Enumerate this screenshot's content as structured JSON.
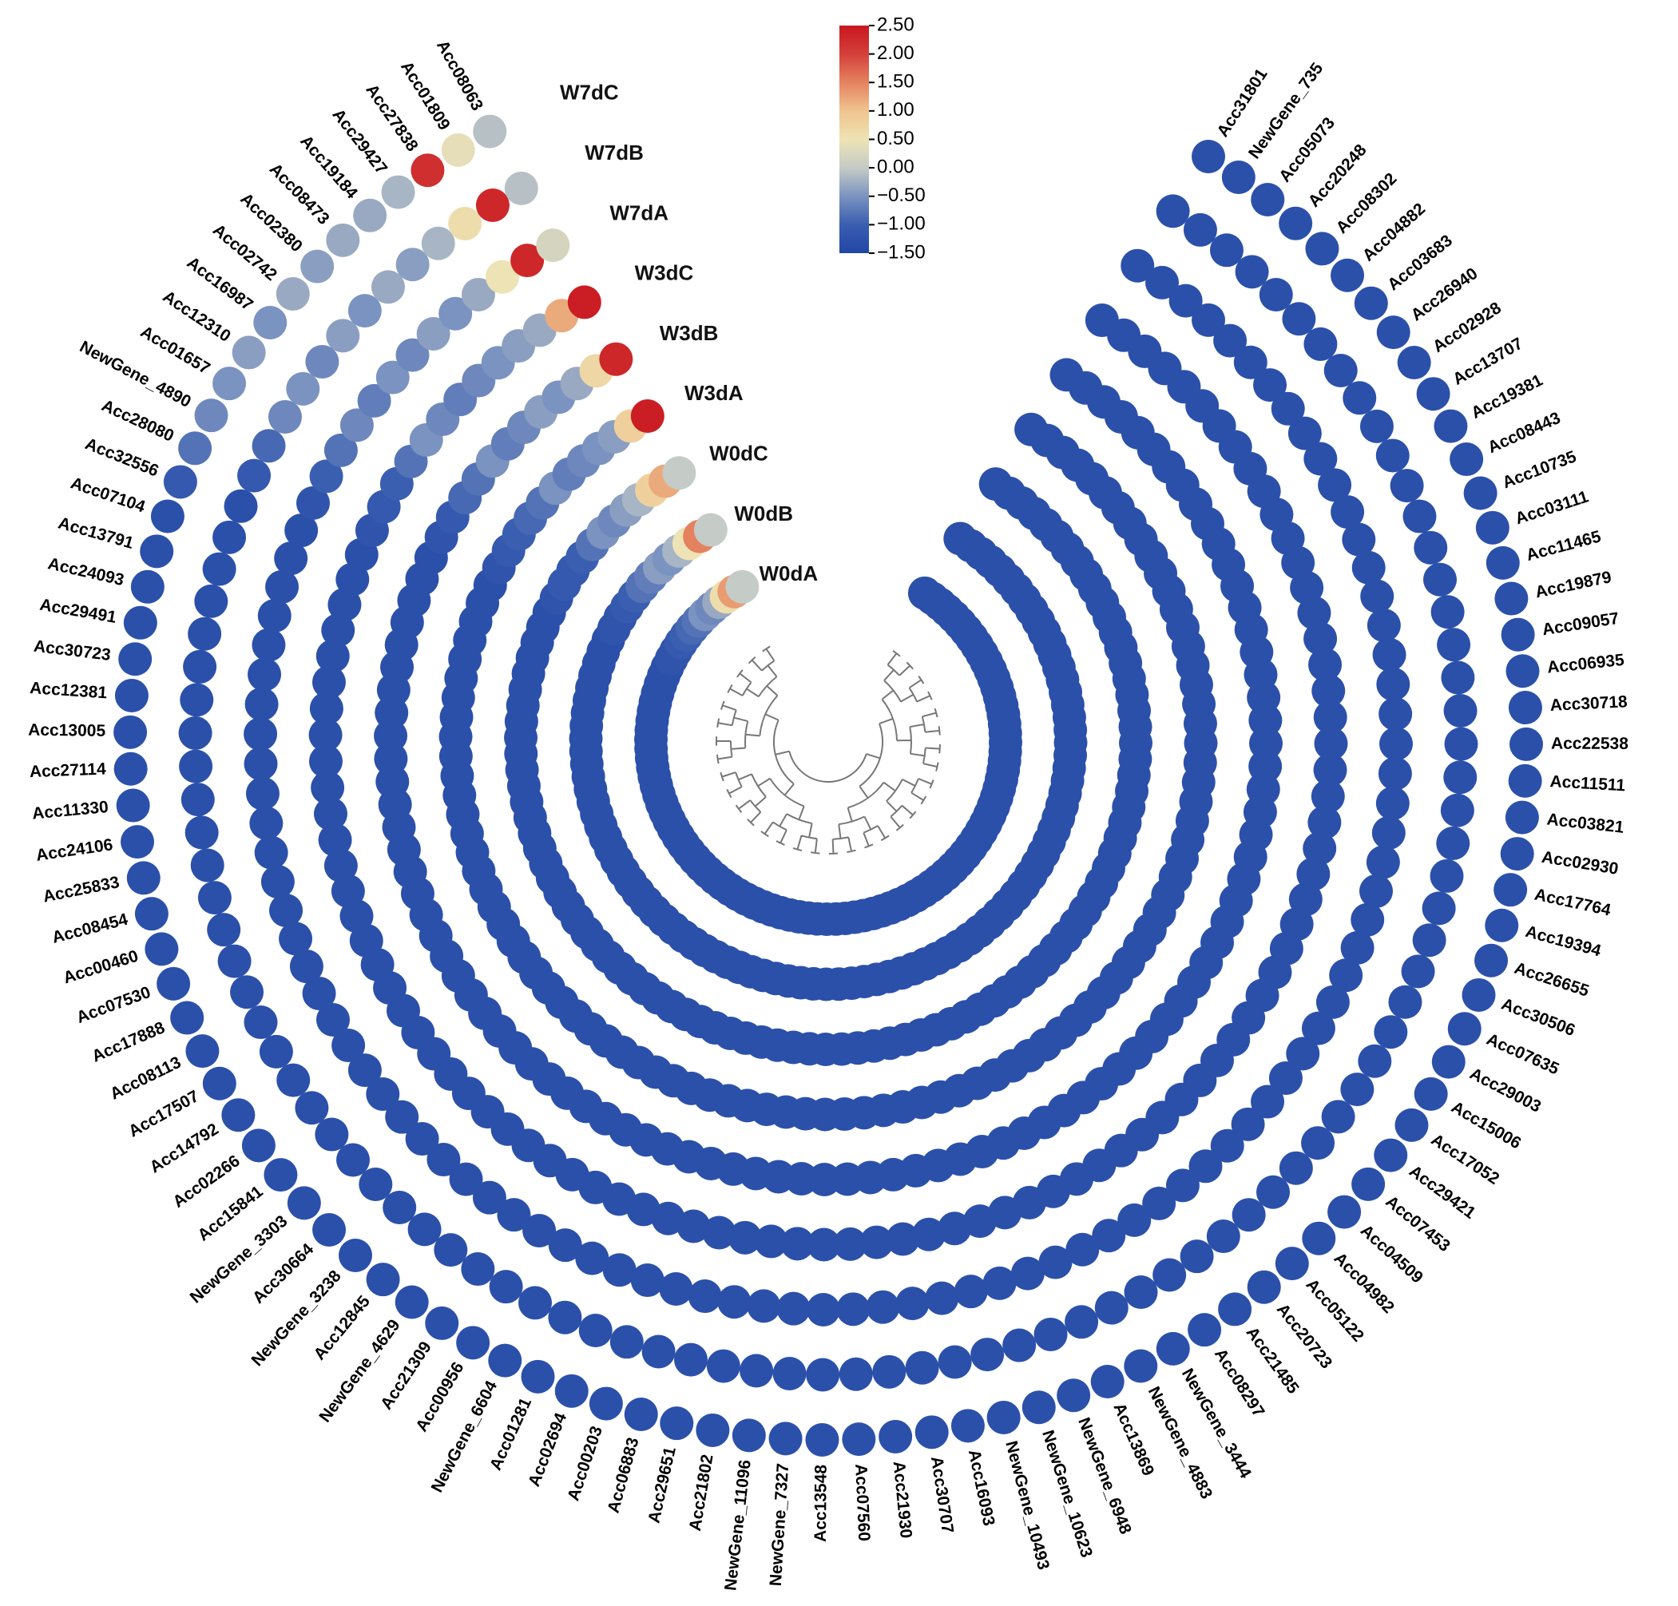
{
  "chart_data": {
    "type": "circular_heatmap",
    "categories": [
      "Acc08063",
      "Acc01809",
      "Acc27838",
      "Acc29427",
      "Acc19184",
      "Acc08473",
      "Acc02380",
      "Acc02742",
      "Acc16987",
      "Acc12310",
      "Acc01657",
      "NewGene_4890",
      "Acc28080",
      "Acc32556",
      "Acc07104",
      "Acc13791",
      "Acc24093",
      "Acc29491",
      "Acc30723",
      "Acc12381",
      "Acc13005",
      "Acc27114",
      "Acc11330",
      "Acc24106",
      "Acc25833",
      "Acc08454",
      "Acc00460",
      "Acc07530",
      "Acc17888",
      "Acc08113",
      "Acc17507",
      "Acc14792",
      "Acc02266",
      "Acc15841",
      "NewGene_3303",
      "Acc30664",
      "NewGene_3238",
      "Acc12845",
      "NewGene_4629",
      "Acc21309",
      "Acc00956",
      "NewGene_6604",
      "Acc01281",
      "Acc02694",
      "Acc00203",
      "Acc06883",
      "Acc29651",
      "Acc21802",
      "NewGene_11096",
      "NewGene_7327",
      "Acc13548",
      "Acc07560",
      "Acc21930",
      "Acc30707",
      "Acc16093",
      "NewGene_10493",
      "NewGene_10623",
      "NewGene_6948",
      "Acc13869",
      "NewGene_4883",
      "NewGene_3444",
      "Acc08297",
      "Acc21485",
      "Acc20723",
      "Acc05122",
      "Acc04982",
      "Acc04509",
      "Acc07453",
      "Acc29421",
      "Acc17052",
      "Acc15006",
      "Acc29003",
      "Acc07635",
      "Acc30506",
      "Acc26655",
      "Acc19394",
      "Acc17764",
      "Acc02930",
      "Acc03821",
      "Acc11511",
      "Acc22538",
      "Acc30718",
      "Acc06935",
      "Acc09057",
      "Acc19879",
      "Acc11465",
      "Acc03111",
      "Acc10735",
      "Acc08443",
      "Acc19381",
      "Acc13707",
      "Acc02928",
      "Acc26940",
      "Acc03683",
      "Acc04882",
      "Acc08302",
      "Acc20248",
      "Acc05073",
      "NewGene_735",
      "Acc31801"
    ],
    "series": [
      {
        "name": "W0dA",
        "values": [
          0,
          1.3,
          0.6,
          -0.3,
          -0.6,
          -0.5,
          -0.8,
          -0.9,
          -1,
          -1.1,
          -1.2,
          -1.2,
          -1.3,
          -1.3,
          -1.3,
          -1.3,
          -1.3,
          -1.3,
          -1.3,
          -1.3,
          -1.3,
          -1.3,
          -1.3,
          -1.3,
          -1.3,
          -1.3,
          -1.3,
          -1.3,
          -1.3,
          -1.3,
          -1.3,
          -1.3,
          -1.3,
          -1.3,
          -1.3,
          -1.3,
          -1.3,
          -1.3,
          -1.3,
          -1.3,
          -1.3,
          -1.3,
          -1.3,
          -1.3,
          -1.3,
          -1.3,
          -1.3,
          -1.3,
          -1.3,
          -1.3,
          -1.3,
          -1.3,
          -1.3,
          -1.3,
          -1.3,
          -1.3,
          -1.3,
          -1.3,
          -1.3,
          -1.3,
          -1.3,
          -1.3,
          -1.3,
          -1.3,
          -1.3,
          -1.3,
          -1.3,
          -1.3,
          -1.3,
          -1.3,
          -1.3,
          -1.3,
          -1.3,
          -1.3,
          -1.3,
          -1.3,
          -1.3,
          -1.3,
          -1.3,
          -1.3,
          -1.3,
          -1.3,
          -1.3,
          -1.3,
          -1.3,
          -1.3,
          -1.3,
          -1.3,
          -1.3,
          -1.3,
          -1.3,
          -1.3,
          -1.3,
          -1.3,
          -1.3,
          -1.3,
          -1.3,
          -1.3,
          -1.3,
          -1.3
        ]
      },
      {
        "name": "W0dB",
        "values": [
          0,
          1.5,
          0.5,
          -0.2,
          -0.5,
          -0.4,
          -0.7,
          -0.8,
          -1,
          -1.1,
          -1.2,
          -1.2,
          -1.3,
          -1.3,
          -1.3,
          -1.3,
          -1.3,
          -1.3,
          -1.3,
          -1.3,
          -1.3,
          -1.3,
          -1.3,
          -1.3,
          -1.3,
          -1.3,
          -1.3,
          -1.3,
          -1.3,
          -1.3,
          -1.3,
          -1.3,
          -1.3,
          -1.3,
          -1.3,
          -1.3,
          -1.3,
          -1.3,
          -1.3,
          -1.3,
          -1.3,
          -1.3,
          -1.3,
          -1.3,
          -1.3,
          -1.3,
          -1.3,
          -1.3,
          -1.3,
          -1.3,
          -1.3,
          -1.3,
          -1.3,
          -1.3,
          -1.3,
          -1.3,
          -1.3,
          -1.3,
          -1.3,
          -1.3,
          -1.3,
          -1.3,
          -1.3,
          -1.3,
          -1.3,
          -1.3,
          -1.3,
          -1.3,
          -1.3,
          -1.3,
          -1.3,
          -1.3,
          -1.3,
          -1.3,
          -1.3,
          -1.3,
          -1.3,
          -1.3,
          -1.3,
          -1.3,
          -1.3,
          -1.3,
          -1.3,
          -1.3,
          -1.3,
          -1.3,
          -1.3,
          -1.3,
          -1.3,
          -1.3,
          -1.3,
          -1.3,
          -1.3,
          -1.3,
          -1.3,
          -1.3,
          -1.3,
          -1.3,
          -1.3,
          -1.3
        ]
      },
      {
        "name": "W0dC",
        "values": [
          0,
          1.2,
          0.8,
          -0.2,
          -0.4,
          -0.6,
          -0.5,
          -0.8,
          -1,
          -1.1,
          -1.1,
          -1.2,
          -1.3,
          -1.3,
          -1.3,
          -1.3,
          -1.3,
          -1.3,
          -1.3,
          -1.3,
          -1.3,
          -1.3,
          -1.3,
          -1.3,
          -1.3,
          -1.3,
          -1.3,
          -1.3,
          -1.3,
          -1.3,
          -1.3,
          -1.3,
          -1.3,
          -1.3,
          -1.3,
          -1.3,
          -1.3,
          -1.3,
          -1.3,
          -1.3,
          -1.3,
          -1.3,
          -1.3,
          -1.3,
          -1.3,
          -1.3,
          -1.3,
          -1.3,
          -1.3,
          -1.3,
          -1.3,
          -1.3,
          -1.3,
          -1.3,
          -1.3,
          -1.3,
          -1.3,
          -1.3,
          -1.3,
          -1.3,
          -1.3,
          -1.3,
          -1.3,
          -1.3,
          -1.3,
          -1.3,
          -1.3,
          -1.3,
          -1.3,
          -1.3,
          -1.3,
          -1.3,
          -1.3,
          -1.3,
          -1.3,
          -1.3,
          -1.3,
          -1.3,
          -1.3,
          -1.3,
          -1.3,
          -1.3,
          -1.3,
          -1.3,
          -1.3,
          -1.3,
          -1.3,
          -1.3,
          -1.3,
          -1.3,
          -1.3,
          -1.3,
          -1.3,
          -1.3,
          -1.3,
          -1.3,
          -1.3,
          -1.3,
          -1.3,
          -1.3
        ]
      },
      {
        "name": "W3dA",
        "values": [
          2.4,
          0.8,
          -0.4,
          -0.5,
          -0.6,
          -0.7,
          -0.5,
          -0.8,
          -0.9,
          -1,
          -1.1,
          -1.2,
          -1.3,
          -1.3,
          -1.3,
          -1.3,
          -1.3,
          -1.3,
          -1.3,
          -1.3,
          -1.3,
          -1.3,
          -1.3,
          -1.3,
          -1.3,
          -1.3,
          -1.3,
          -1.3,
          -1.3,
          -1.3,
          -1.3,
          -1.3,
          -1.3,
          -1.3,
          -1.3,
          -1.3,
          -1.3,
          -1.3,
          -1.3,
          -1.3,
          -1.3,
          -1.3,
          -1.3,
          -1.3,
          -1.3,
          -1.3,
          -1.3,
          -1.3,
          -1.3,
          -1.3,
          -1.3,
          -1.3,
          -1.3,
          -1.3,
          -1.3,
          -1.3,
          -1.3,
          -1.3,
          -1.3,
          -1.3,
          -1.3,
          -1.3,
          -1.3,
          -1.3,
          -1.3,
          -1.3,
          -1.3,
          -1.3,
          -1.3,
          -1.3,
          -1.3,
          -1.3,
          -1.3,
          -1.3,
          -1.3,
          -1.3,
          -1.3,
          -1.3,
          -1.3,
          -1.3,
          -1.3,
          -1.3,
          -1.3,
          -1.3,
          -1.3,
          -1.3,
          -1.3,
          -1.3,
          -1.3,
          -1.3,
          -1.3,
          -1.3,
          -1.3,
          -1.3,
          -1.3,
          -1.3,
          -1.3,
          -1.3,
          -1.3,
          -1.3
        ]
      },
      {
        "name": "W3dB",
        "values": [
          2.3,
          0.7,
          -0.3,
          -0.5,
          -0.4,
          -0.6,
          -0.7,
          -0.5,
          -0.8,
          -0.9,
          -1.1,
          -1.2,
          -1.3,
          -1.3,
          -1.3,
          -1.3,
          -1.3,
          -1.3,
          -1.3,
          -1.3,
          -1.3,
          -1.3,
          -1.3,
          -1.3,
          -1.3,
          -1.3,
          -1.3,
          -1.3,
          -1.3,
          -1.3,
          -1.3,
          -1.3,
          -1.3,
          -1.3,
          -1.3,
          -1.3,
          -1.3,
          -1.3,
          -1.3,
          -1.3,
          -1.3,
          -1.3,
          -1.3,
          -1.3,
          -1.3,
          -1.3,
          -1.3,
          -1.3,
          -1.3,
          -1.3,
          -1.3,
          -1.3,
          -1.3,
          -1.3,
          -1.3,
          -1.3,
          -1.3,
          -1.3,
          -1.3,
          -1.3,
          -1.3,
          -1.3,
          -1.3,
          -1.3,
          -1.3,
          -1.3,
          -1.3,
          -1.3,
          -1.3,
          -1.3,
          -1.3,
          -1.3,
          -1.3,
          -1.3,
          -1.3,
          -1.3,
          -1.3,
          -1.3,
          -1.3,
          -1.3,
          -1.3,
          -1.3,
          -1.3,
          -1.3,
          -1.3,
          -1.3,
          -1.3,
          -1.3,
          -1.3,
          -1.3,
          -1.3,
          -1.3,
          -1.3,
          -1.3,
          -1.3,
          -1.3,
          -1.3,
          -1.3,
          -1.3,
          -1.3
        ]
      },
      {
        "name": "W3dC",
        "values": [
          2.4,
          1.2,
          -0.3,
          -0.4,
          -0.5,
          -0.6,
          -0.7,
          -0.6,
          -0.5,
          -0.8,
          -1,
          -1.1,
          -1.2,
          -1.3,
          -1.3,
          -1.3,
          -1.3,
          -1.3,
          -1.3,
          -1.3,
          -1.3,
          -1.3,
          -1.3,
          -1.3,
          -1.3,
          -1.3,
          -1.3,
          -1.3,
          -1.3,
          -1.3,
          -1.3,
          -1.3,
          -1.3,
          -1.3,
          -1.3,
          -1.3,
          -1.3,
          -1.3,
          -1.3,
          -1.3,
          -1.3,
          -1.3,
          -1.3,
          -1.3,
          -1.3,
          -1.3,
          -1.3,
          -1.3,
          -1.3,
          -1.3,
          -1.3,
          -1.3,
          -1.3,
          -1.3,
          -1.3,
          -1.3,
          -1.3,
          -1.3,
          -1.3,
          -1.3,
          -1.3,
          -1.3,
          -1.3,
          -1.3,
          -1.3,
          -1.3,
          -1.3,
          -1.3,
          -1.3,
          -1.3,
          -1.3,
          -1.3,
          -1.3,
          -1.3,
          -1.3,
          -1.3,
          -1.3,
          -1.3,
          -1.3,
          -1.3,
          -1.3,
          -1.3,
          -1.3,
          -1.3,
          -1.3,
          -1.3,
          -1.3,
          -1.3,
          -1.3,
          -1.3,
          -1.3,
          -1.3,
          -1.3,
          -1.3,
          -1.3,
          -1.3,
          -1.3,
          -1.3,
          -1.3,
          -1.3
        ]
      },
      {
        "name": "W7dA",
        "values": [
          0.2,
          2.3,
          0.5,
          -0.3,
          -0.5,
          -0.4,
          -0.6,
          -0.5,
          -0.7,
          -0.6,
          -0.8,
          -1,
          -1.2,
          -1.3,
          -1.3,
          -1.3,
          -1.3,
          -1.3,
          -1.3,
          -1.3,
          -1.3,
          -1.3,
          -1.3,
          -1.3,
          -1.3,
          -1.3,
          -1.3,
          -1.3,
          -1.3,
          -1.3,
          -1.3,
          -1.3,
          -1.3,
          -1.3,
          -1.3,
          -1.3,
          -1.3,
          -1.3,
          -1.3,
          -1.3,
          -1.3,
          -1.3,
          -1.3,
          -1.3,
          -1.3,
          -1.3,
          -1.3,
          -1.3,
          -1.3,
          -1.3,
          -1.3,
          -1.3,
          -1.3,
          -1.3,
          -1.3,
          -1.3,
          -1.3,
          -1.3,
          -1.3,
          -1.3,
          -1.3,
          -1.3,
          -1.3,
          -1.3,
          -1.3,
          -1.3,
          -1.3,
          -1.3,
          -1.3,
          -1.3,
          -1.3,
          -1.3,
          -1.3,
          -1.3,
          -1.3,
          -1.3,
          -1.3,
          -1.3,
          -1.3,
          -1.3,
          -1.3,
          -1.3,
          -1.3,
          -1.3,
          -1.3,
          -1.3,
          -1.3,
          -1.3,
          -1.3,
          -1.3,
          -1.3,
          -1.3,
          -1.3,
          -1.3,
          -1.3,
          -1.3,
          -1.3,
          -1.3,
          -1.3,
          -1.3
        ]
      },
      {
        "name": "W7dB",
        "values": [
          -0.1,
          2.3,
          0.6,
          -0.2,
          -0.4,
          -0.3,
          -0.5,
          -0.4,
          -0.6,
          -0.5,
          -0.6,
          -0.9,
          -1.1,
          -1.3,
          -1.3,
          -1.3,
          -1.3,
          -1.3,
          -1.3,
          -1.3,
          -1.3,
          -1.3,
          -1.3,
          -1.3,
          -1.3,
          -1.3,
          -1.3,
          -1.3,
          -1.3,
          -1.3,
          -1.3,
          -1.3,
          -1.3,
          -1.3,
          -1.3,
          -1.3,
          -1.3,
          -1.3,
          -1.3,
          -1.3,
          -1.3,
          -1.3,
          -1.3,
          -1.3,
          -1.3,
          -1.3,
          -1.3,
          -1.3,
          -1.3,
          -1.3,
          -1.3,
          -1.3,
          -1.3,
          -1.3,
          -1.3,
          -1.3,
          -1.3,
          -1.3,
          -1.3,
          -1.3,
          -1.3,
          -1.3,
          -1.3,
          -1.3,
          -1.3,
          -1.3,
          -1.3,
          -1.3,
          -1.3,
          -1.3,
          -1.3,
          -1.3,
          -1.3,
          -1.3,
          -1.3,
          -1.3,
          -1.3,
          -1.3,
          -1.3,
          -1.3,
          -1.3,
          -1.3,
          -1.3,
          -1.3,
          -1.3,
          -1.3,
          -1.3,
          -1.3,
          -1.3,
          -1.3,
          -1.3,
          -1.3,
          -1.3,
          -1.3,
          -1.3,
          -1.3,
          -1.3,
          -1.3,
          -1.3,
          -1.3
        ]
      },
      {
        "name": "W7dC",
        "values": [
          -0.1,
          0.4,
          2.2,
          -0.2,
          -0.3,
          -0.3,
          -0.4,
          -0.3,
          -0.5,
          -0.4,
          -0.5,
          -0.6,
          -0.8,
          -1.1,
          -1.3,
          -1.3,
          -1.3,
          -1.3,
          -1.3,
          -1.3,
          -1.3,
          -1.3,
          -1.3,
          -1.3,
          -1.3,
          -1.3,
          -1.3,
          -1.3,
          -1.3,
          -1.3,
          -1.3,
          -1.3,
          -1.3,
          -1.3,
          -1.3,
          -1.3,
          -1.3,
          -1.3,
          -1.3,
          -1.3,
          -1.3,
          -1.3,
          -1.3,
          -1.3,
          -1.3,
          -1.3,
          -1.3,
          -1.3,
          -1.3,
          -1.3,
          -1.3,
          -1.3,
          -1.3,
          -1.3,
          -1.3,
          -1.3,
          -1.3,
          -1.3,
          -1.3,
          -1.3,
          -1.3,
          -1.3,
          -1.3,
          -1.3,
          -1.3,
          -1.3,
          -1.3,
          -1.3,
          -1.3,
          -1.3,
          -1.3,
          -1.3,
          -1.3,
          -1.3,
          -1.3,
          -1.3,
          -1.3,
          -1.3,
          -1.3,
          -1.3,
          -1.3,
          -1.3,
          -1.3,
          -1.3,
          -1.3,
          -1.3,
          -1.3,
          -1.3,
          -1.3,
          -1.3,
          -1.3,
          -1.3,
          -1.3,
          -1.3,
          -1.3,
          -1.3,
          -1.3,
          -1.3,
          -1.3,
          -1.3
        ]
      }
    ],
    "colorscale": [
      "#2146a6",
      "#3a5eb0",
      "#7b93c0",
      "#c5cbc6",
      "#ede3b4",
      "#f0c48e",
      "#e4825f",
      "#d4403a",
      "#c8161f"
    ],
    "clim": [
      -1.5,
      2.5
    ],
    "cticks": [
      {
        "value": 2.5,
        "label": "2.50"
      },
      {
        "value": 2,
        "label": "2.00"
      },
      {
        "value": 1.5,
        "label": "1.50"
      },
      {
        "value": 1,
        "label": "1.00"
      },
      {
        "value": 0.5,
        "label": "0.50"
      },
      {
        "value": 0,
        "label": "0.00"
      },
      {
        "value": -0.5,
        "label": "−0.50"
      },
      {
        "value": -1,
        "label": "−1.00"
      },
      {
        "value": -1.5,
        "label": "−1.50"
      }
    ]
  }
}
